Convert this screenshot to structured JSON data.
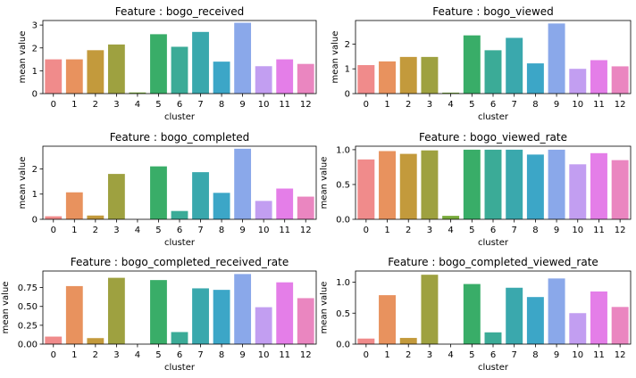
{
  "palette": [
    "#f08b8b",
    "#e8925e",
    "#c39a3c",
    "#9ea140",
    "#79ab3c",
    "#39ad68",
    "#3bab97",
    "#3aa8ad",
    "#3ca6c7",
    "#8aa8ea",
    "#c29ef1",
    "#e47ee8",
    "#ea86c0"
  ],
  "chart_data": [
    {
      "type": "bar",
      "title": "Feature : bogo_received",
      "xlabel": "cluster",
      "ylabel": "mean value",
      "categories": [
        "0",
        "1",
        "2",
        "3",
        "4",
        "5",
        "6",
        "7",
        "8",
        "9",
        "10",
        "11",
        "12"
      ],
      "values": [
        1.5,
        1.5,
        1.9,
        2.15,
        0.05,
        2.6,
        2.05,
        2.7,
        1.4,
        3.1,
        1.2,
        1.5,
        1.3
      ],
      "ylim": [
        0,
        3.2
      ],
      "yticks": [
        0,
        1,
        2,
        3
      ],
      "ytick_labels": [
        "0",
        "1",
        "2",
        "3"
      ]
    },
    {
      "type": "bar",
      "title": "Feature : bogo_viewed",
      "xlabel": "cluster",
      "ylabel": "mean value",
      "categories": [
        "0",
        "1",
        "2",
        "3",
        "4",
        "5",
        "6",
        "7",
        "8",
        "9",
        "10",
        "11",
        "12"
      ],
      "values": [
        1.15,
        1.3,
        1.48,
        1.48,
        0.04,
        2.35,
        1.75,
        2.25,
        1.22,
        2.83,
        1.0,
        1.35,
        1.1
      ],
      "ylim": [
        0,
        2.95
      ],
      "yticks": [
        0,
        1,
        2
      ],
      "ytick_labels": [
        "0",
        "1",
        "2"
      ]
    },
    {
      "type": "bar",
      "title": "Feature : bogo_completed",
      "xlabel": "cluster",
      "ylabel": "mean value",
      "categories": [
        "0",
        "1",
        "2",
        "3",
        "4",
        "5",
        "6",
        "7",
        "8",
        "9",
        "10",
        "11",
        "12"
      ],
      "values": [
        0.12,
        1.07,
        0.15,
        1.8,
        0,
        2.1,
        0.33,
        1.87,
        1.05,
        2.8,
        0.73,
        1.22,
        0.9
      ],
      "ylim": [
        0,
        2.9
      ],
      "yticks": [
        0,
        1,
        2
      ],
      "ytick_labels": [
        "0",
        "1",
        "2"
      ]
    },
    {
      "type": "bar",
      "title": "Feature : bogo_viewed_rate",
      "xlabel": "cluster",
      "ylabel": "mean value",
      "categories": [
        "0",
        "1",
        "2",
        "3",
        "4",
        "5",
        "6",
        "7",
        "8",
        "9",
        "10",
        "11",
        "12"
      ],
      "values": [
        0.86,
        0.98,
        0.94,
        0.99,
        0.05,
        1.0,
        1.0,
        1.0,
        0.93,
        1.0,
        0.79,
        0.95,
        0.85
      ],
      "ylim": [
        0,
        1.05
      ],
      "yticks": [
        0,
        0.5,
        1.0
      ],
      "ytick_labels": [
        "0.0",
        "0.5",
        "1.0"
      ]
    },
    {
      "type": "bar",
      "title": "Feature : bogo_completed_received_rate",
      "xlabel": "cluster",
      "ylabel": "mean value",
      "categories": [
        "0",
        "1",
        "2",
        "3",
        "4",
        "5",
        "6",
        "7",
        "8",
        "9",
        "10",
        "11",
        "12"
      ],
      "values": [
        0.1,
        0.77,
        0.08,
        0.88,
        0,
        0.85,
        0.16,
        0.74,
        0.72,
        0.93,
        0.49,
        0.82,
        0.61
      ],
      "ylim": [
        0,
        0.97
      ],
      "yticks": [
        0,
        0.25,
        0.5,
        0.75
      ],
      "ytick_labels": [
        "0.00",
        "0.25",
        "0.50",
        "0.75"
      ]
    },
    {
      "type": "bar",
      "title": "Feature : bogo_completed_viewed_rate",
      "xlabel": "cluster",
      "ylabel": "mean value",
      "categories": [
        "0",
        "1",
        "2",
        "3",
        "4",
        "5",
        "6",
        "7",
        "8",
        "9",
        "10",
        "11",
        "12"
      ],
      "values": [
        0.09,
        0.79,
        0.1,
        1.12,
        0,
        0.97,
        0.19,
        0.91,
        0.76,
        1.06,
        0.5,
        0.85,
        0.6
      ],
      "ylim": [
        0,
        1.18
      ],
      "yticks": [
        0,
        0.5,
        1.0
      ],
      "ytick_labels": [
        "0.0",
        "0.5",
        "1.0"
      ]
    }
  ]
}
